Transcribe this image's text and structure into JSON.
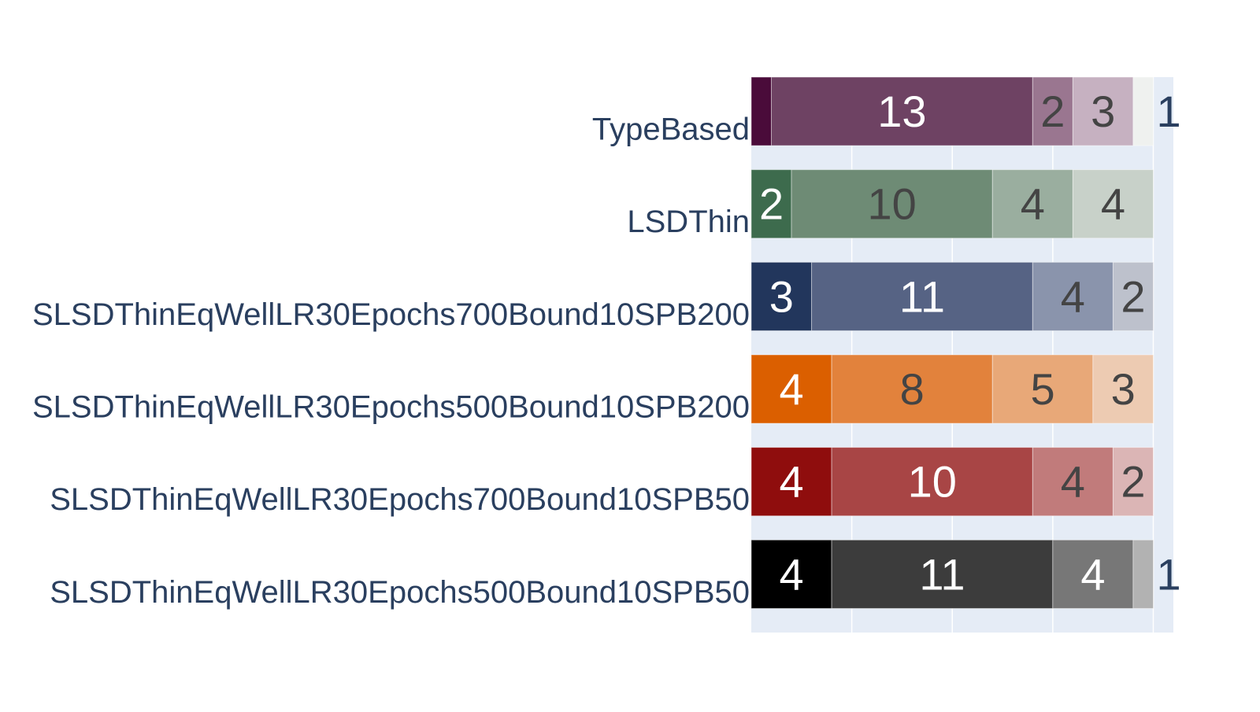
{
  "chart_data": {
    "type": "bar",
    "orientation": "horizontal",
    "barmode": "stack",
    "categories": [
      "TypeBased",
      "LSDThin",
      "SLSDThinEqWellLR30Epochs700Bound10SPB200",
      "SLSDThinEqWellLR30Epochs500Bound10SPB200",
      "SLSDThinEqWellLR30Epochs700Bound10SPB50",
      "SLSDThinEqWellLR30Epochs500Bound10SPB50"
    ],
    "rows": [
      {
        "category": "TypeBased",
        "segments": [
          {
            "value": 1,
            "color": "#4a0b3a",
            "text": "",
            "text_color": "#ffffff"
          },
          {
            "value": 13,
            "color": "#6e4263",
            "text": "13",
            "text_color": "#ffffff"
          },
          {
            "value": 2,
            "color": "#9a7690",
            "text": "2",
            "text_color": "#444444"
          },
          {
            "value": 3,
            "color": "#c6b1c1",
            "text": "3",
            "text_color": "#444444"
          },
          {
            "value": 1,
            "color": "#eff1ef",
            "text": "1",
            "text_color": "#2a3f5f"
          }
        ]
      },
      {
        "category": "LSDThin",
        "segments": [
          {
            "value": 2,
            "color": "#3d6b4d",
            "text": "2",
            "text_color": "#ffffff"
          },
          {
            "value": 10,
            "color": "#6e8b75",
            "text": "10",
            "text_color": "#444444"
          },
          {
            "value": 4,
            "color": "#9aae9f",
            "text": "4",
            "text_color": "#444444"
          },
          {
            "value": 4,
            "color": "#c8d1c9",
            "text": "4",
            "text_color": "#444444"
          }
        ]
      },
      {
        "category": "SLSDThinEqWellLR30Epochs700Bound10SPB200",
        "segments": [
          {
            "value": 3,
            "color": "#22365c",
            "text": "3",
            "text_color": "#ffffff"
          },
          {
            "value": 11,
            "color": "#566384",
            "text": "11",
            "text_color": "#ffffff"
          },
          {
            "value": 4,
            "color": "#8a94ac",
            "text": "4",
            "text_color": "#444444"
          },
          {
            "value": 2,
            "color": "#bdc1cc",
            "text": "2",
            "text_color": "#444444"
          }
        ]
      },
      {
        "category": "SLSDThinEqWellLR30Epochs500Bound10SPB200",
        "segments": [
          {
            "value": 4,
            "color": "#db5f00",
            "text": "4",
            "text_color": "#ffffff"
          },
          {
            "value": 8,
            "color": "#e2823c",
            "text": "8",
            "text_color": "#444444"
          },
          {
            "value": 5,
            "color": "#e8a878",
            "text": "5",
            "text_color": "#444444"
          },
          {
            "value": 3,
            "color": "#edcbb2",
            "text": "3",
            "text_color": "#444444"
          }
        ]
      },
      {
        "category": "SLSDThinEqWellLR30Epochs700Bound10SPB50",
        "segments": [
          {
            "value": 4,
            "color": "#8f0d0d",
            "text": "4",
            "text_color": "#ffffff"
          },
          {
            "value": 10,
            "color": "#a84545",
            "text": "10",
            "text_color": "#ffffff"
          },
          {
            "value": 4,
            "color": "#c17b7b",
            "text": "4",
            "text_color": "#444444"
          },
          {
            "value": 2,
            "color": "#dbb5b5",
            "text": "2",
            "text_color": "#444444"
          }
        ]
      },
      {
        "category": "SLSDThinEqWellLR30Epochs500Bound10SPB50",
        "segments": [
          {
            "value": 4,
            "color": "#000000",
            "text": "4",
            "text_color": "#ffffff"
          },
          {
            "value": 11,
            "color": "#3c3c3c",
            "text": "11",
            "text_color": "#ffffff"
          },
          {
            "value": 4,
            "color": "#777777",
            "text": "4",
            "text_color": "#ffffff"
          },
          {
            "value": 1,
            "color": "#b2b2b2",
            "text": "1",
            "text_color": "#2a3f5f"
          }
        ]
      }
    ],
    "xlim": [
      0,
      21
    ],
    "x_gridlines": [
      5,
      10,
      15,
      20
    ],
    "grid": true,
    "plot_background": "#e5ecf6",
    "tick_label_color": "#2a3f5f",
    "legend": "none",
    "title": "",
    "xlabel": "",
    "ylabel": ""
  }
}
